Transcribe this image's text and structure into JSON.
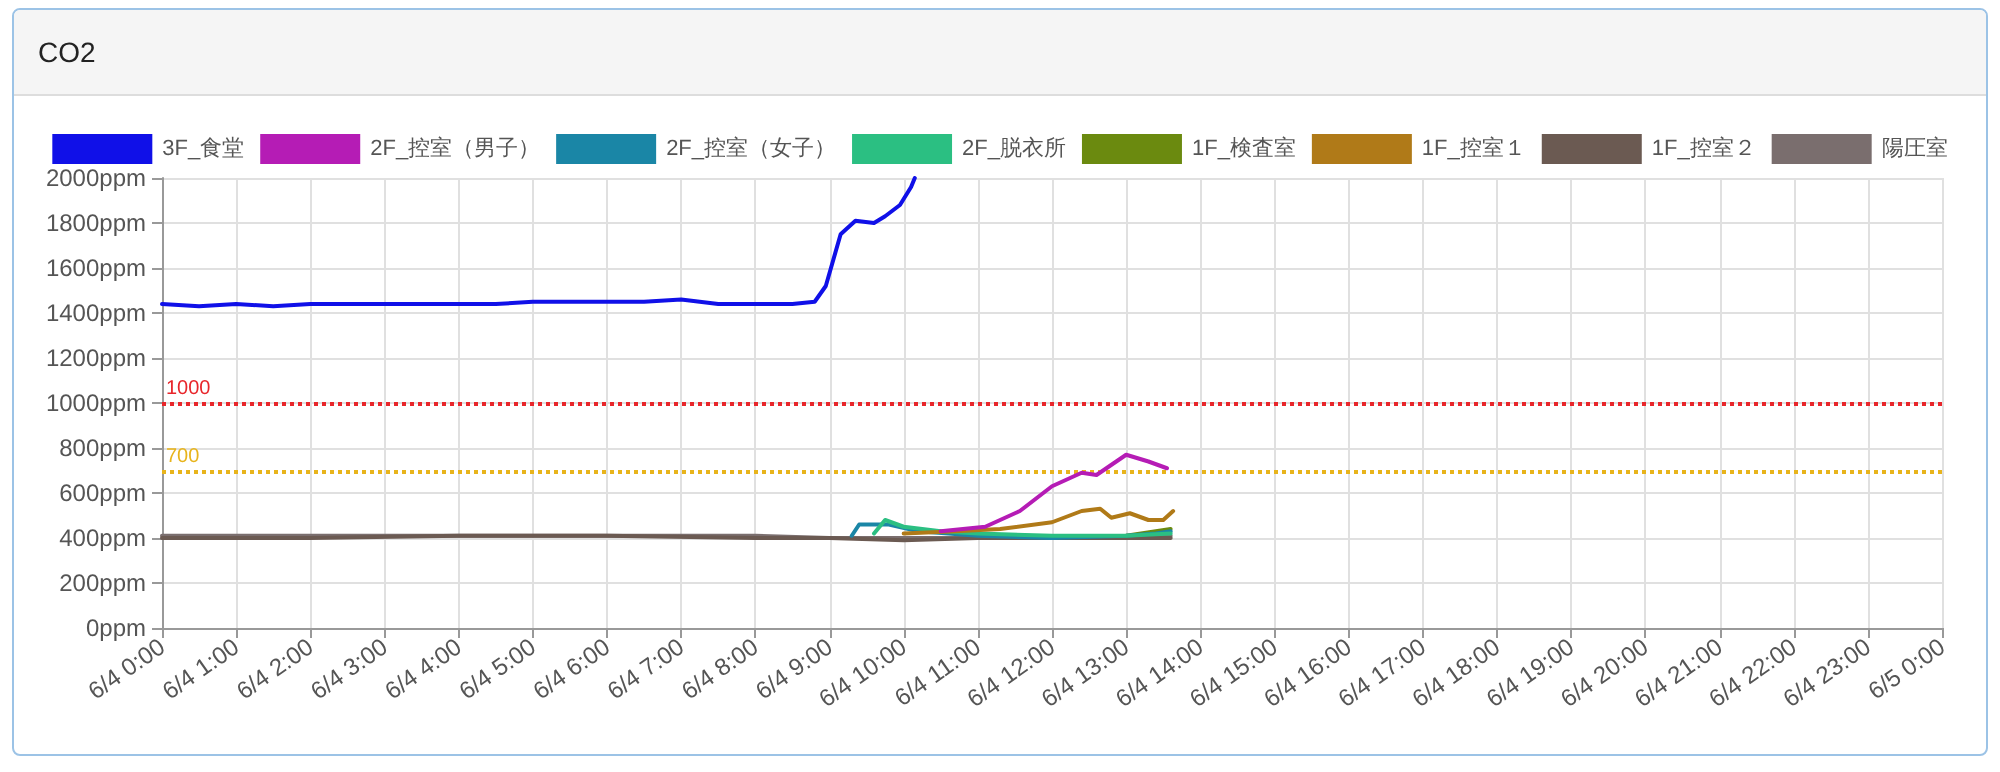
{
  "chart_data": {
    "type": "line",
    "title": "CO2",
    "legend": "top",
    "grid": true,
    "marker": "none",
    "line_style": "solid",
    "xlim": [
      "--06-04T00:00",
      "--06-05T00:00"
    ],
    "xticks": [
      {
        "value": "--06-04T00:00",
        "label": "6/4 0:00"
      },
      {
        "value": "--06-04T01:00",
        "label": "6/4 1:00"
      },
      {
        "value": "--06-04T02:00",
        "label": "6/4 2:00"
      },
      {
        "value": "--06-04T03:00",
        "label": "6/4 3:00"
      },
      {
        "value": "--06-04T04:00",
        "label": "6/4 4:00"
      },
      {
        "value": "--06-04T05:00",
        "label": "6/4 5:00"
      },
      {
        "value": "--06-04T06:00",
        "label": "6/4 6:00"
      },
      {
        "value": "--06-04T07:00",
        "label": "6/4 7:00"
      },
      {
        "value": "--06-04T08:00",
        "label": "6/4 8:00"
      },
      {
        "value": "--06-04T09:00",
        "label": "6/4 9:00"
      },
      {
        "value": "--06-04T10:00",
        "label": "6/4 10:00"
      },
      {
        "value": "--06-04T11:00",
        "label": "6/4 11:00"
      },
      {
        "value": "--06-04T12:00",
        "label": "6/4 12:00"
      },
      {
        "value": "--06-04T13:00",
        "label": "6/4 13:00"
      },
      {
        "value": "--06-04T14:00",
        "label": "6/4 14:00"
      },
      {
        "value": "--06-04T15:00",
        "label": "6/4 15:00"
      },
      {
        "value": "--06-04T16:00",
        "label": "6/4 16:00"
      },
      {
        "value": "--06-04T17:00",
        "label": "6/4 17:00"
      },
      {
        "value": "--06-04T18:00",
        "label": "6/4 18:00"
      },
      {
        "value": "--06-04T19:00",
        "label": "6/4 19:00"
      },
      {
        "value": "--06-04T20:00",
        "label": "6/4 20:00"
      },
      {
        "value": "--06-04T21:00",
        "label": "6/4 21:00"
      },
      {
        "value": "--06-04T22:00",
        "label": "6/4 22:00"
      },
      {
        "value": "--06-04T23:00",
        "label": "6/4 23:00"
      },
      {
        "value": "--06-05T00:00",
        "label": "6/5 0:00"
      }
    ],
    "ylim": [
      0,
      2000
    ],
    "yticks": [
      {
        "value": 0,
        "label": "0ppm"
      },
      {
        "value": 200,
        "label": "200ppm"
      },
      {
        "value": 400,
        "label": "400ppm"
      },
      {
        "value": 600,
        "label": "600ppm"
      },
      {
        "value": 800,
        "label": "800ppm"
      },
      {
        "value": 1000,
        "label": "1000ppm"
      },
      {
        "value": 1200,
        "label": "1200ppm"
      },
      {
        "value": 1400,
        "label": "1400ppm"
      },
      {
        "value": 1600,
        "label": "1600ppm"
      },
      {
        "value": 1800,
        "label": "1800ppm"
      },
      {
        "value": 2000,
        "label": "2000ppm"
      }
    ],
    "ref_lines": [
      {
        "axis": "y",
        "value": 1000,
        "label": "1000",
        "color": "#e8262b",
        "line_style": "dotted"
      },
      {
        "axis": "y",
        "value": 700,
        "label": "700",
        "color": "#e8b41c",
        "line_style": "dotted"
      }
    ],
    "series": [
      {
        "name": "3F_食堂",
        "color": "#1010e8",
        "x": [
          "--06-04T00:00",
          "--06-04T00:30",
          "--06-04T01:00",
          "--06-04T01:30",
          "--06-04T02:00",
          "--06-04T02:30",
          "--06-04T03:00",
          "--06-04T03:30",
          "--06-04T04:00",
          "--06-04T04:30",
          "--06-04T05:00",
          "--06-04T05:30",
          "--06-04T06:00",
          "--06-04T06:30",
          "--06-04T07:00",
          "--06-04T07:30",
          "--06-04T08:00",
          "--06-04T08:30",
          "--06-04T08:48",
          "--06-04T08:57",
          "--06-04T09:09",
          "--06-04T09:21",
          "--06-04T09:36",
          "--06-04T09:45",
          "--06-04T09:57",
          "--06-04T10:06",
          "--06-04T10:09"
        ],
        "values": [
          1440,
          1430,
          1440,
          1430,
          1440,
          1440,
          1440,
          1440,
          1440,
          1440,
          1450,
          1450,
          1450,
          1450,
          1460,
          1440,
          1440,
          1440,
          1450,
          1520,
          1750,
          1810,
          1800,
          1830,
          1880,
          1960,
          2000
        ]
      },
      {
        "name": "2F_控室（男子）",
        "color": "#b51cb5",
        "x": [
          "--06-04T10:30",
          "--06-04T11:06",
          "--06-04T11:34",
          "--06-04T12:00",
          "--06-04T12:24",
          "--06-04T12:36",
          "--06-04T13:00",
          "--06-04T13:18",
          "--06-04T13:33"
        ],
        "values": [
          430,
          450,
          520,
          630,
          690,
          680,
          770,
          740,
          710
        ]
      },
      {
        "name": "2F_控室（女子）",
        "color": "#1a86a6",
        "x": [
          "--06-04T09:18",
          "--06-04T09:24",
          "--06-04T09:48",
          "--06-04T10:12",
          "--06-04T11:00",
          "--06-04T12:00",
          "--06-04T13:00",
          "--06-04T13:24",
          "--06-04T13:36"
        ],
        "values": [
          410,
          460,
          460,
          430,
          410,
          400,
          410,
          420,
          430
        ]
      },
      {
        "name": "2F_脱衣所",
        "color": "#2bbf82",
        "x": [
          "--06-04T09:36",
          "--06-04T09:45",
          "--06-04T10:00",
          "--06-04T10:30",
          "--06-04T11:00",
          "--06-04T12:00",
          "--06-04T13:00",
          "--06-04T13:36"
        ],
        "values": [
          420,
          480,
          450,
          430,
          420,
          410,
          410,
          420
        ]
      },
      {
        "name": "1F_検査室",
        "color": "#6b8a0f",
        "x": [
          "--06-04T13:00",
          "--06-04T13:36"
        ],
        "values": [
          410,
          440
        ]
      },
      {
        "name": "1F_控室１",
        "color": "#b07a18",
        "x": [
          "--06-04T10:00",
          "--06-04T10:42",
          "--06-04T11:18",
          "--06-04T12:00",
          "--06-04T12:24",
          "--06-04T12:39",
          "--06-04T12:48",
          "--06-04T13:03",
          "--06-04T13:18",
          "--06-04T13:30",
          "--06-04T13:38"
        ],
        "values": [
          420,
          430,
          440,
          470,
          520,
          530,
          490,
          510,
          480,
          480,
          520
        ]
      },
      {
        "name": "1F_控室２",
        "color": "#6b5a52",
        "x": [
          "--06-04T00:00",
          "--06-04T02:00",
          "--06-04T04:00",
          "--06-04T06:00",
          "--06-04T08:00",
          "--06-04T09:00",
          "--06-04T10:00",
          "--06-04T11:00",
          "--06-04T12:00",
          "--06-04T13:00",
          "--06-04T13:36"
        ],
        "values": [
          400,
          400,
          410,
          410,
          400,
          400,
          390,
          400,
          400,
          400,
          400
        ]
      },
      {
        "name": "陽圧室",
        "color": "#7a6e6e",
        "x": [
          "--06-04T00:00",
          "--06-04T02:00",
          "--06-04T04:00",
          "--06-04T06:00",
          "--06-04T08:00",
          "--06-04T09:00",
          "--06-04T10:00",
          "--06-04T11:00",
          "--06-04T12:00",
          "--06-04T13:00",
          "--06-04T13:36"
        ],
        "values": [
          410,
          410,
          410,
          410,
          410,
          400,
          400,
          400,
          400,
          400,
          410
        ]
      }
    ]
  }
}
